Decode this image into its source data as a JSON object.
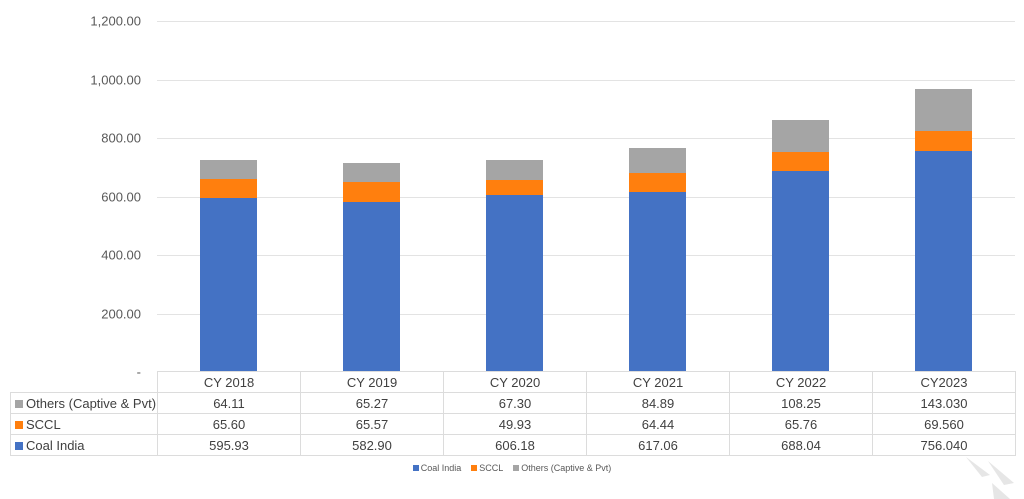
{
  "chart_data": {
    "type": "bar",
    "stacked": true,
    "title": "",
    "xlabel": "",
    "ylabel": "",
    "ylim": [
      0,
      1200
    ],
    "yticks": [
      "-",
      "200.00",
      "400.00",
      "600.00",
      "800.00",
      "1,000.00",
      "1,200.00"
    ],
    "grid": true,
    "legend_position": "bottom",
    "categories": [
      "CY 2018",
      "CY 2019",
      "CY 2020",
      "CY 2021",
      "CY 2022",
      "CY2023"
    ],
    "series": [
      {
        "name": "Coal India",
        "color": "#4472C4",
        "values": [
          595.93,
          582.9,
          606.18,
          617.06,
          688.04,
          756.04
        ],
        "labels": [
          "595.93",
          "582.90",
          "606.18",
          "617.06",
          "688.04",
          "756.040"
        ]
      },
      {
        "name": "SCCL",
        "color": "#FF7F0E",
        "values": [
          65.6,
          65.57,
          49.93,
          64.44,
          65.76,
          69.56
        ],
        "labels": [
          "65.60",
          "65.57",
          "49.93",
          "64.44",
          "65.76",
          "69.560"
        ]
      },
      {
        "name": "Others (Captive & Pvt)",
        "color": "#A5A5A5",
        "values": [
          64.11,
          65.27,
          67.3,
          84.89,
          108.25,
          143.03
        ],
        "labels": [
          "64.11",
          "65.27",
          "67.30",
          "84.89",
          "108.25",
          "143.030"
        ]
      }
    ]
  },
  "table": {
    "rows_order": [
      "Others (Captive & Pvt)",
      "SCCL",
      "Coal India"
    ]
  },
  "legend": {
    "items": [
      "Coal India",
      "SCCL",
      "Others (Captive & Pvt)"
    ]
  }
}
